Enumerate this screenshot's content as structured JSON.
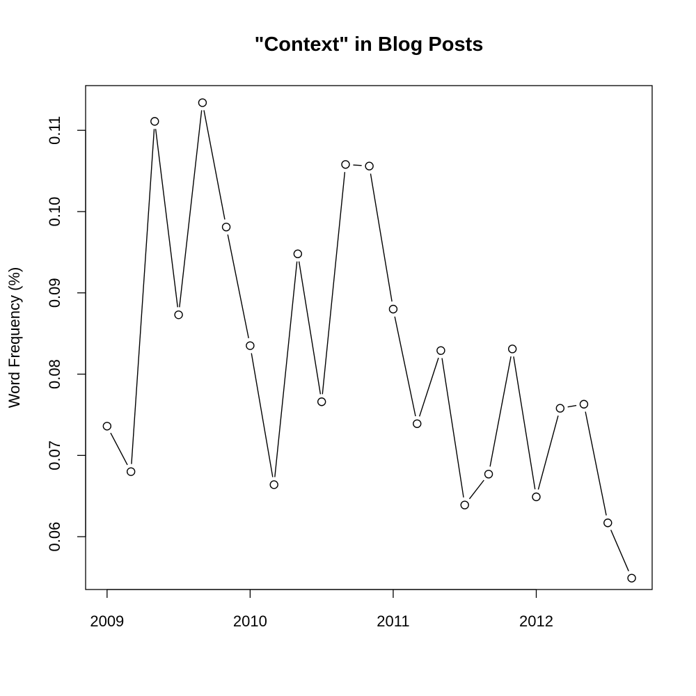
{
  "chart_data": {
    "type": "line",
    "title": "\"Context\" in Blog Posts",
    "xlabel": "",
    "ylabel": "Word Frequency (%)",
    "xlim": [
      2008.85,
      2012.81
    ],
    "ylim": [
      0.0535,
      0.1155
    ],
    "x_ticks": [
      2009,
      2010,
      2011,
      2012
    ],
    "x_tick_labels": [
      "2009",
      "2010",
      "2011",
      "2012"
    ],
    "y_ticks": [
      0.06,
      0.07,
      0.08,
      0.09,
      0.1,
      0.11
    ],
    "y_tick_labels": [
      "0.06",
      "0.07",
      "0.08",
      "0.09",
      "0.10",
      "0.11"
    ],
    "grid": false,
    "marker": "open-circle",
    "line_color": "#000000",
    "series": [
      {
        "x": [
          2009.0,
          2009.167,
          2009.333,
          2009.5,
          2009.667,
          2009.833,
          2010.0,
          2010.167,
          2010.333,
          2010.5,
          2010.667,
          2010.833,
          2011.0,
          2011.167,
          2011.333,
          2011.5,
          2011.667,
          2011.833,
          2012.0,
          2012.167,
          2012.333,
          2012.5,
          2012.667
        ],
        "y": [
          0.0736,
          0.068,
          0.1111,
          0.0873,
          0.1134,
          0.0981,
          0.0835,
          0.0664,
          0.0948,
          0.0766,
          0.1058,
          0.1056,
          0.088,
          0.0739,
          0.0829,
          0.0639,
          0.0677,
          0.0831,
          0.0649,
          0.0758,
          0.0763,
          0.0617,
          0.0549
        ]
      }
    ]
  }
}
